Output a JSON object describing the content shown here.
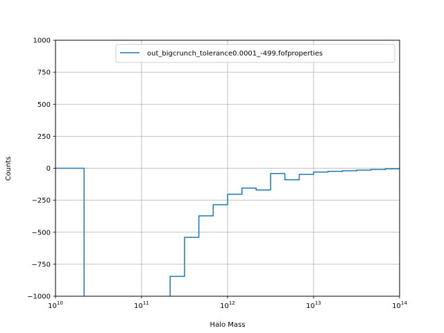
{
  "chart_data": {
    "type": "line",
    "drawstyle": "steps-post",
    "xscale": "log",
    "xlabel": "Halo Mass",
    "ylabel": "Counts",
    "xlim": [
      10000000000.0,
      100000000000000.0
    ],
    "ylim": [
      -1000,
      1000
    ],
    "grid": true,
    "legend_position": "top-right",
    "x_ticks": [
      {
        "value": 10000000000.0,
        "base": "10",
        "exp": "10"
      },
      {
        "value": 100000000000.0,
        "base": "10",
        "exp": "11"
      },
      {
        "value": 1000000000000.0,
        "base": "10",
        "exp": "12"
      },
      {
        "value": 10000000000000.0,
        "base": "10",
        "exp": "13"
      },
      {
        "value": 100000000000000.0,
        "base": "10",
        "exp": "14"
      }
    ],
    "y_ticks": [
      {
        "value": 1000,
        "label": "1000"
      },
      {
        "value": 750,
        "label": "750"
      },
      {
        "value": 500,
        "label": "500"
      },
      {
        "value": 250,
        "label": "250"
      },
      {
        "value": 0,
        "label": "0"
      },
      {
        "value": -250,
        "label": "−250"
      },
      {
        "value": -500,
        "label": "−500"
      },
      {
        "value": -750,
        "label": "−750"
      },
      {
        "value": -1000,
        "label": "−1000"
      }
    ],
    "series": [
      {
        "name": "out_bigcrunch_tolerance0.0001_-499.fofproperties",
        "color": "#1f77b4",
        "points": [
          {
            "x": 10000000000.0,
            "y": 0
          },
          {
            "x": 21500000000.0,
            "y": 0
          },
          {
            "x": 21500000000.0,
            "y": -1100
          },
          {
            "x": 215000000000.0,
            "y": -1100
          },
          {
            "x": 215000000000.0,
            "y": -845
          },
          {
            "x": 316000000000.0,
            "y": -845
          },
          {
            "x": 316000000000.0,
            "y": -540
          },
          {
            "x": 464000000000.0,
            "y": -540
          },
          {
            "x": 464000000000.0,
            "y": -372
          },
          {
            "x": 681000000000.0,
            "y": -372
          },
          {
            "x": 681000000000.0,
            "y": -285
          },
          {
            "x": 1000000000000.0,
            "y": -285
          },
          {
            "x": 1000000000000.0,
            "y": -203
          },
          {
            "x": 1470000000000.0,
            "y": -203
          },
          {
            "x": 1470000000000.0,
            "y": -155
          },
          {
            "x": 2150000000000.0,
            "y": -155
          },
          {
            "x": 2150000000000.0,
            "y": -170
          },
          {
            "x": 3160000000000.0,
            "y": -170
          },
          {
            "x": 3160000000000.0,
            "y": -42
          },
          {
            "x": 4640000000000.0,
            "y": -42
          },
          {
            "x": 4640000000000.0,
            "y": -90
          },
          {
            "x": 6810000000000.0,
            "y": -90
          },
          {
            "x": 6810000000000.0,
            "y": -48
          },
          {
            "x": 10000000000000.0,
            "y": -48
          },
          {
            "x": 10000000000000.0,
            "y": -30
          },
          {
            "x": 14700000000000.0,
            "y": -30
          },
          {
            "x": 14700000000000.0,
            "y": -25
          },
          {
            "x": 21500000000000.0,
            "y": -25
          },
          {
            "x": 21500000000000.0,
            "y": -20
          },
          {
            "x": 31600000000000.0,
            "y": -20
          },
          {
            "x": 31600000000000.0,
            "y": -15
          },
          {
            "x": 46400000000000.0,
            "y": -15
          },
          {
            "x": 46400000000000.0,
            "y": -10
          },
          {
            "x": 68100000000000.0,
            "y": -10
          },
          {
            "x": 68100000000000.0,
            "y": -5
          },
          {
            "x": 100000000000000.0,
            "y": -5
          }
        ]
      }
    ]
  }
}
